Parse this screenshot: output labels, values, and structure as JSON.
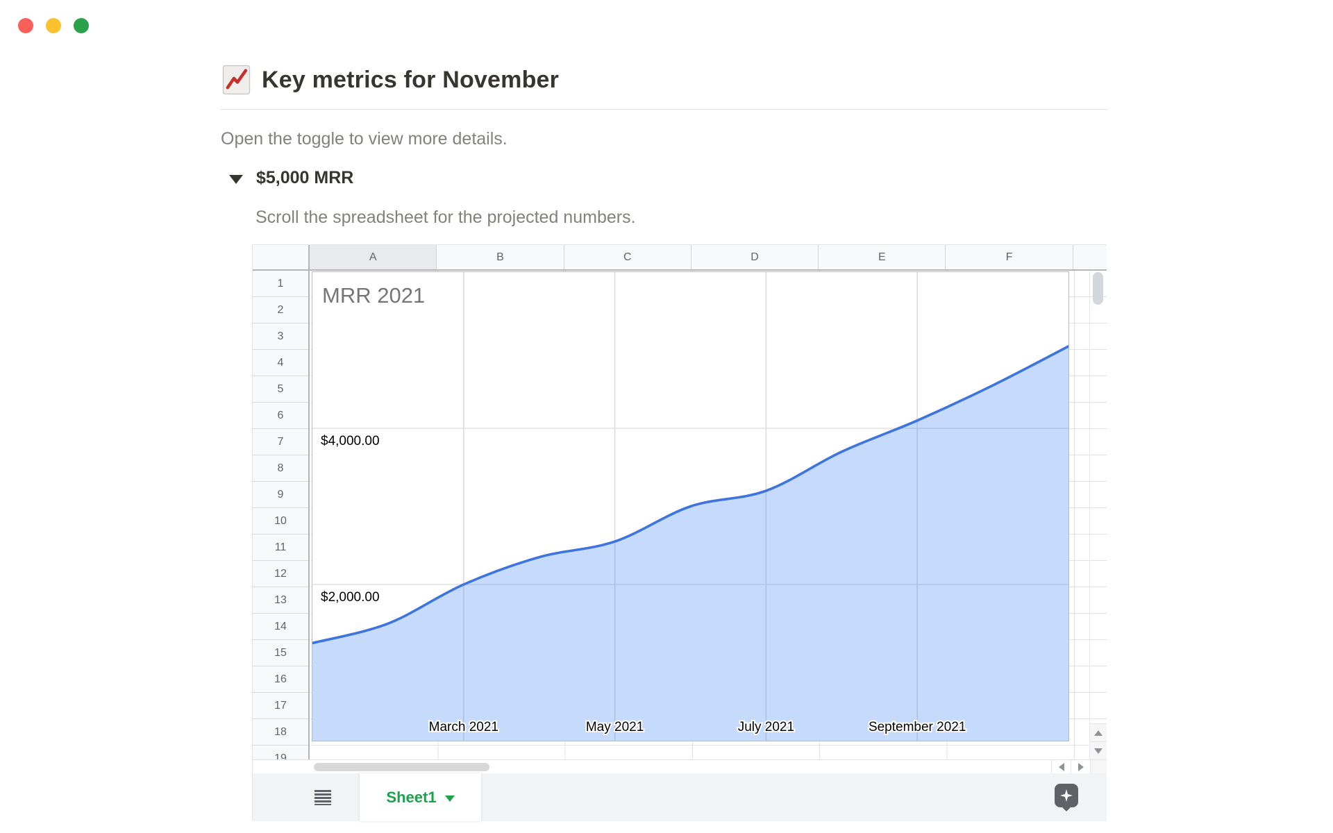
{
  "window": {
    "traffic_lights": {
      "close": "#f9605a",
      "minimize": "#fbc12f",
      "zoom": "#2ba14b"
    }
  },
  "page": {
    "title": "Key metrics for November",
    "title_emoji": "chart-increasing",
    "intro_text": "Open the toggle to view more details.",
    "toggle": {
      "label": "$5,000 MRR",
      "state": "open"
    },
    "toggle_hint": "Scroll the spreadsheet for the projected numbers."
  },
  "spreadsheet": {
    "column_headers": [
      "A",
      "B",
      "C",
      "D",
      "E",
      "F"
    ],
    "selected_column": "A",
    "visible_row_count": 19,
    "tab_bar": {
      "active_tab": "Sheet1",
      "tab_color": "#1aa34a"
    },
    "chart_data": {
      "type": "area",
      "title": "MRR 2021",
      "x": [
        "January 2021",
        "February 2021",
        "March 2021",
        "April 2021",
        "May 2021",
        "June 2021",
        "July 2021",
        "August 2021",
        "September 2021",
        "October 2021",
        "November 2021"
      ],
      "values": [
        1250,
        1500,
        2000,
        2350,
        2550,
        3000,
        3200,
        3700,
        4100,
        4550,
        5050
      ],
      "x_tick_indices": [
        2,
        4,
        6,
        8
      ],
      "x_tick_labels": [
        "March 2021",
        "May 2021",
        "July 2021",
        "September 2021"
      ],
      "y_ticks": [
        4000,
        2000
      ],
      "y_tick_labels": [
        "$4,000.00",
        "$2,000.00"
      ],
      "ylim": [
        0,
        6000
      ],
      "grid": true,
      "legend": "none",
      "line_color": "#3d74dd",
      "fill_color": "rgba(66,133,244,0.30)",
      "title_color": "#757575",
      "vgrid_color": "#d9d9d9",
      "hgrid_color": "#e0e0e0"
    }
  }
}
